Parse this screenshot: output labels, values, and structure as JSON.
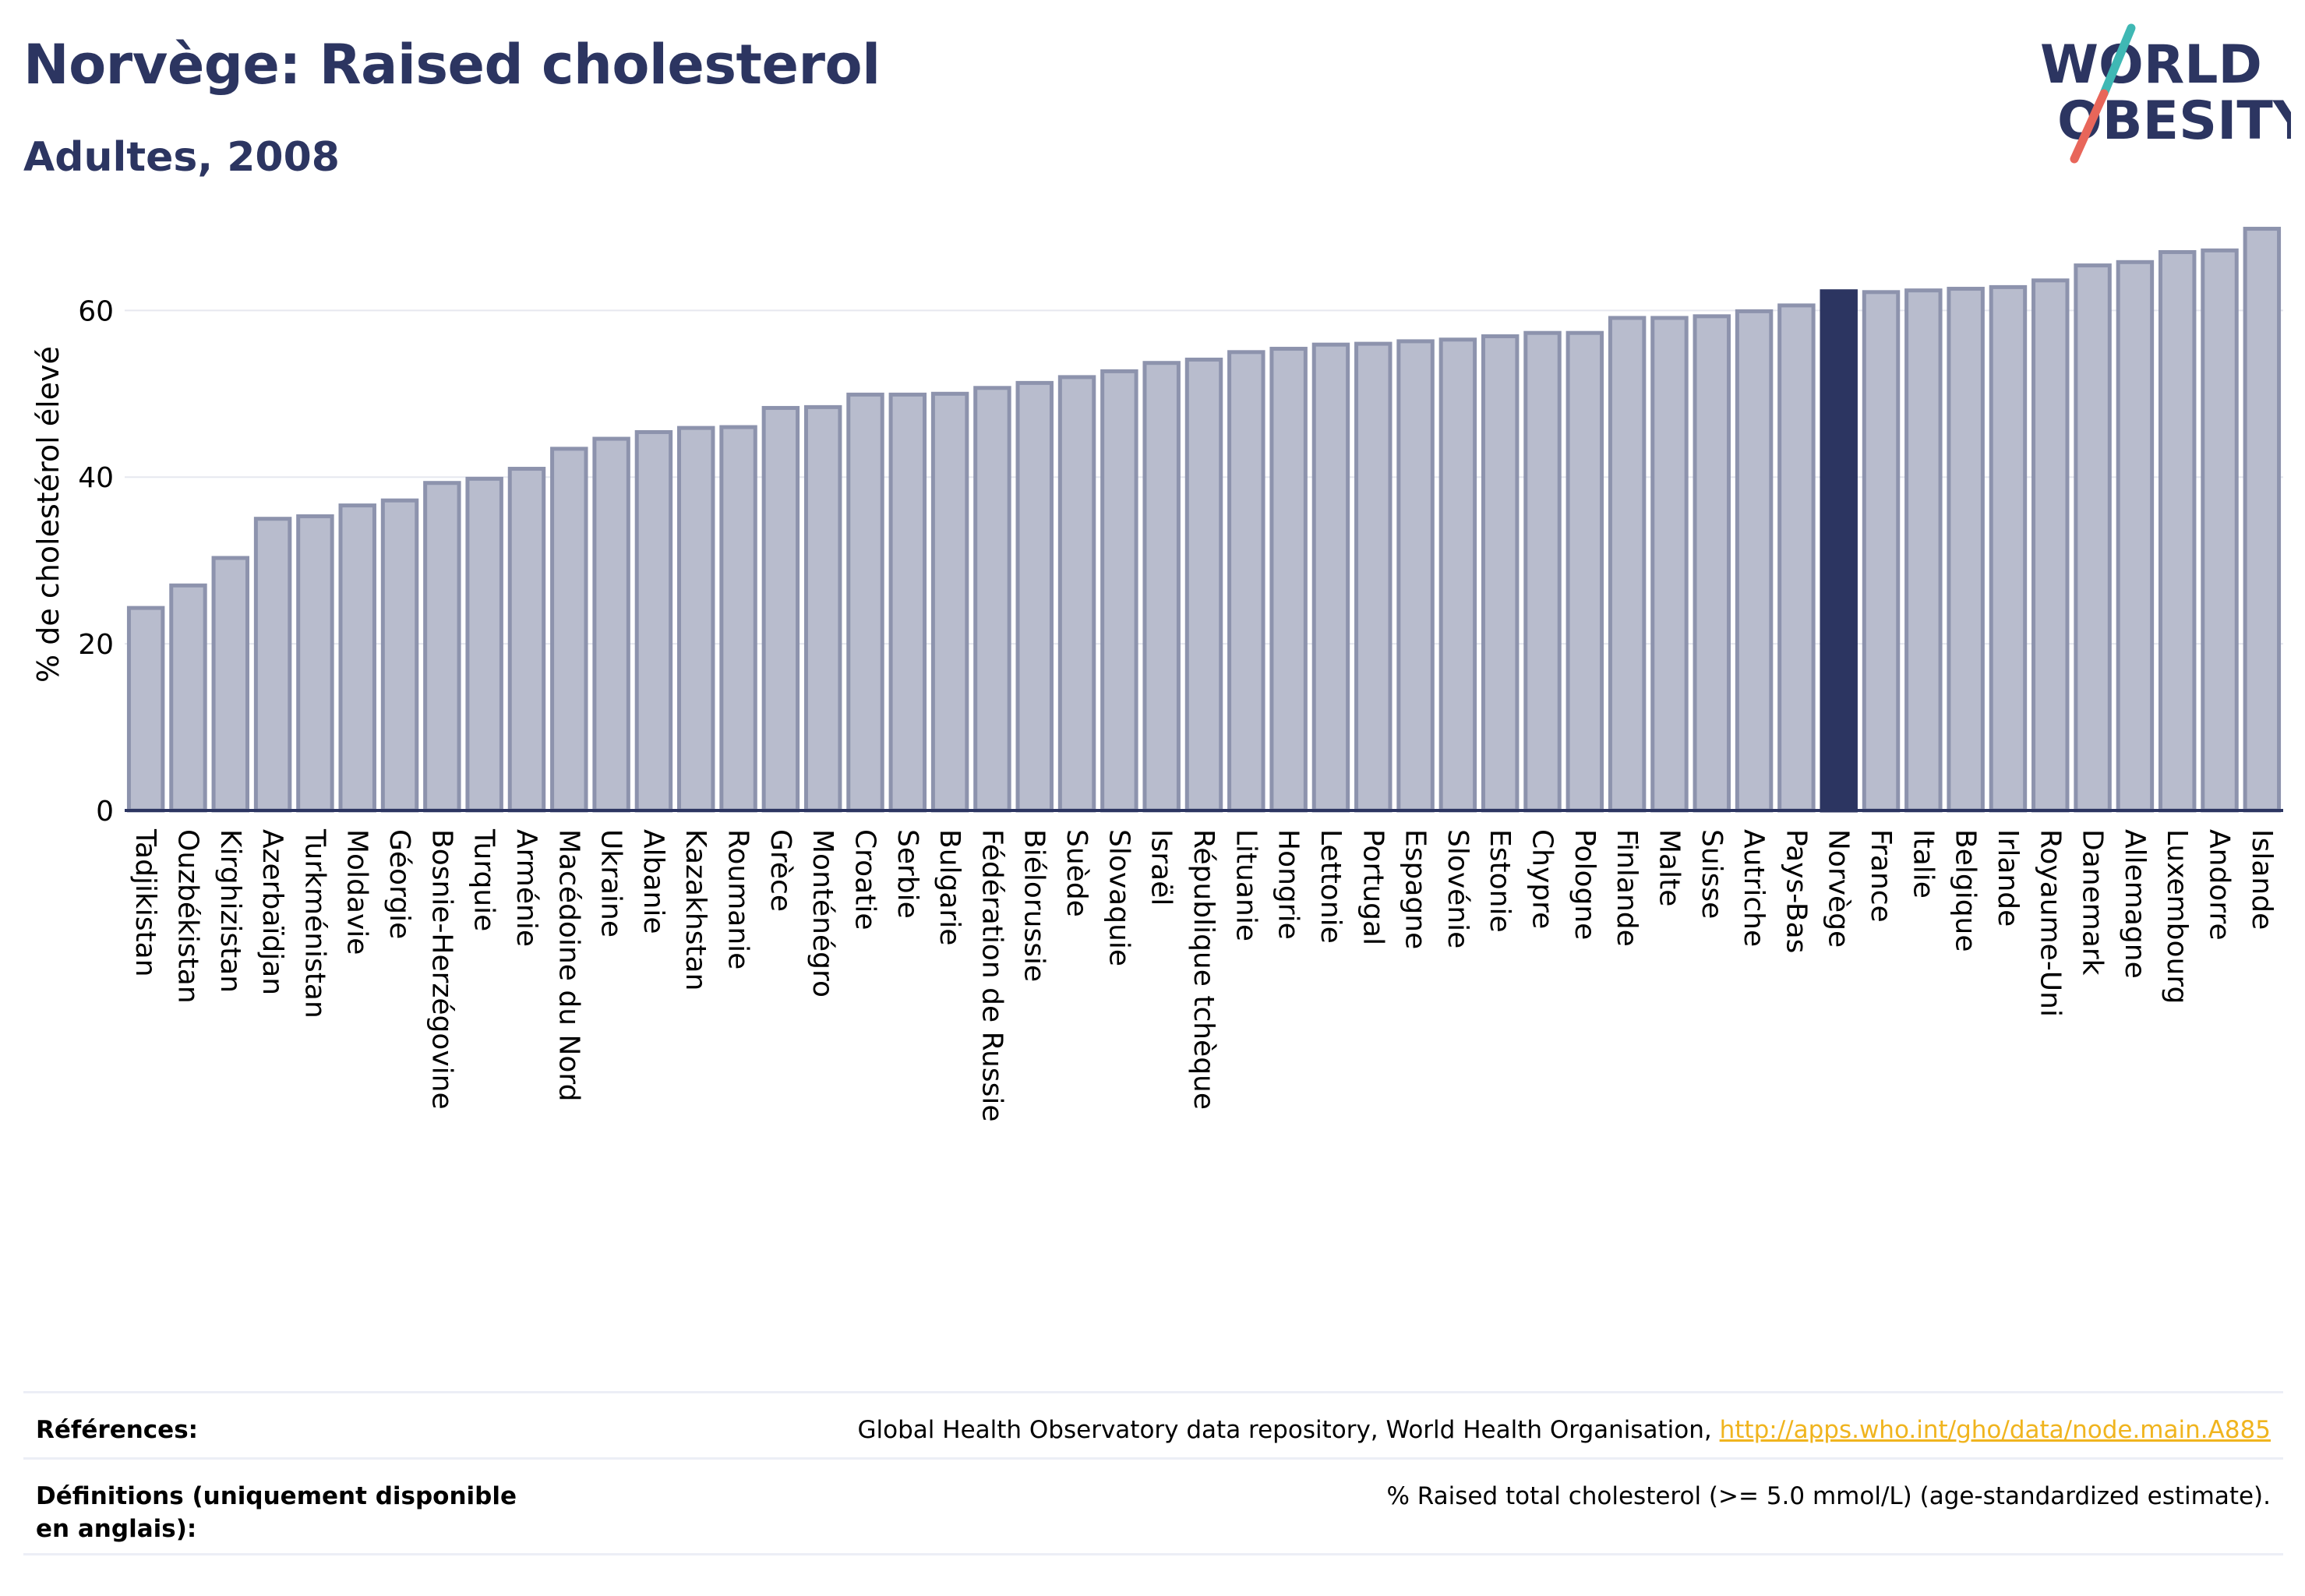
{
  "header": {
    "title": "Norvège: Raised cholesterol",
    "subtitle": "Adultes, 2008"
  },
  "logo": {
    "line1": "WORLD",
    "line2": "OBESITY",
    "colors": {
      "text": "#2c3561",
      "slash_teal": "#3fb8b4",
      "slash_coral": "#e8665a"
    }
  },
  "chart_data": {
    "type": "bar",
    "ylabel": "% de cholestérol élevé",
    "xlabel": "",
    "ylim": [
      0,
      72
    ],
    "yticks": [
      0,
      20,
      40,
      60
    ],
    "grid": true,
    "highlight": "Norvège",
    "colors": {
      "bar": "#b8bccd",
      "bar_edge": "#8d93ad",
      "highlight": "#2c3561"
    },
    "categories": [
      "Tadjikistan",
      "Ouzbékistan",
      "Kirghizistan",
      "Azerbaïdjan",
      "Turkménistan",
      "Moldavie",
      "Géorgie",
      "Bosnie-Herzégovine",
      "Turquie",
      "Arménie",
      "Macédoine du Nord",
      "Ukraine",
      "Albanie",
      "Kazakhstan",
      "Roumanie",
      "Grèce",
      "Monténégro",
      "Croatie",
      "Serbie",
      "Bulgarie",
      "Fédération de Russie",
      "Biélorussie",
      "Suède",
      "Slovaquie",
      "Israël",
      "République tchèque",
      "Lituanie",
      "Hongrie",
      "Lettonie",
      "Portugal",
      "Espagne",
      "Slovénie",
      "Estonie",
      "Chypre",
      "Pologne",
      "Finlande",
      "Malte",
      "Suisse",
      "Autriche",
      "Pays-Bas",
      "Norvège",
      "France",
      "Italie",
      "Belgique",
      "Irlande",
      "Royaume-Uni",
      "Danemark",
      "Allemagne",
      "Luxembourg",
      "Andorre",
      "Islande"
    ],
    "values": [
      24.3,
      27.0,
      30.3,
      35.0,
      35.3,
      36.6,
      37.2,
      39.3,
      39.8,
      41.0,
      43.4,
      44.6,
      45.4,
      45.9,
      46.0,
      48.3,
      48.4,
      49.9,
      49.9,
      50.0,
      50.7,
      51.3,
      52.0,
      52.7,
      53.7,
      54.1,
      55.0,
      55.4,
      55.9,
      56.0,
      56.3,
      56.5,
      56.9,
      57.3,
      57.3,
      59.1,
      59.1,
      59.3,
      59.9,
      60.6,
      62.3,
      62.2,
      62.4,
      62.6,
      62.8,
      63.6,
      65.4,
      65.8,
      67.0,
      67.2,
      69.8
    ]
  },
  "footer": {
    "references_label": "Références:",
    "references_text": "Global Health Observatory data repository, World Health Organisation, ",
    "references_link": "http://apps.who.int/gho/data/node.main.A885",
    "definitions_label": "Définitions (uniquement disponible en anglais):",
    "definitions_text": "% Raised total cholesterol (>= 5.0 mmol/L) (age-standardized estimate)."
  }
}
